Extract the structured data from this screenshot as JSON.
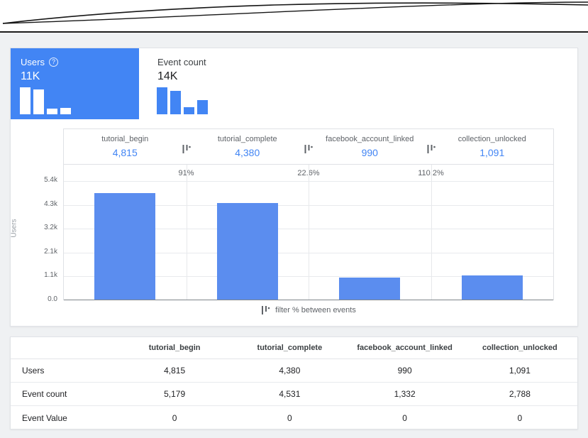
{
  "colors": {
    "accent": "#4285f4",
    "bar": "#5b8def",
    "selected_card_bg": "#4285f4"
  },
  "metric_cards": [
    {
      "label": "Users",
      "value": "11K",
      "selected": true,
      "help_icon": "?",
      "mini_bars": [
        4815,
        4380,
        990,
        1091
      ]
    },
    {
      "label": "Event count",
      "value": "14K",
      "selected": false,
      "mini_bars": [
        5179,
        4531,
        1332,
        2788
      ]
    }
  ],
  "chart_data": {
    "type": "bar",
    "categories": [
      "tutorial_begin",
      "tutorial_complete",
      "facebook_account_linked",
      "collection_unlocked"
    ],
    "values": [
      4815,
      4380,
      990,
      1091
    ],
    "value_labels": [
      "4,815",
      "4,380",
      "990",
      "1,091"
    ],
    "between_percentages": [
      "91%",
      "22.6%",
      "110.2%"
    ],
    "title": "",
    "xlabel": "",
    "ylabel": "Users",
    "ylim": [
      0,
      5400
    ],
    "ytick_labels": [
      "5.4k",
      "4.3k",
      "3.2k",
      "2.1k",
      "1.1k",
      "0.0"
    ],
    "grid": true,
    "legend": "filter % between events",
    "bar_color": "#5b8def"
  },
  "table": {
    "columns": [
      "tutorial_begin",
      "tutorial_complete",
      "facebook_account_linked",
      "collection_unlocked"
    ],
    "rows": [
      {
        "label": "Users",
        "values": [
          "4,815",
          "4,380",
          "990",
          "1,091"
        ]
      },
      {
        "label": "Event count",
        "values": [
          "5,179",
          "4,531",
          "1,332",
          "2,788"
        ]
      },
      {
        "label": "Event Value",
        "values": [
          "0",
          "0",
          "0",
          "0"
        ]
      }
    ]
  }
}
